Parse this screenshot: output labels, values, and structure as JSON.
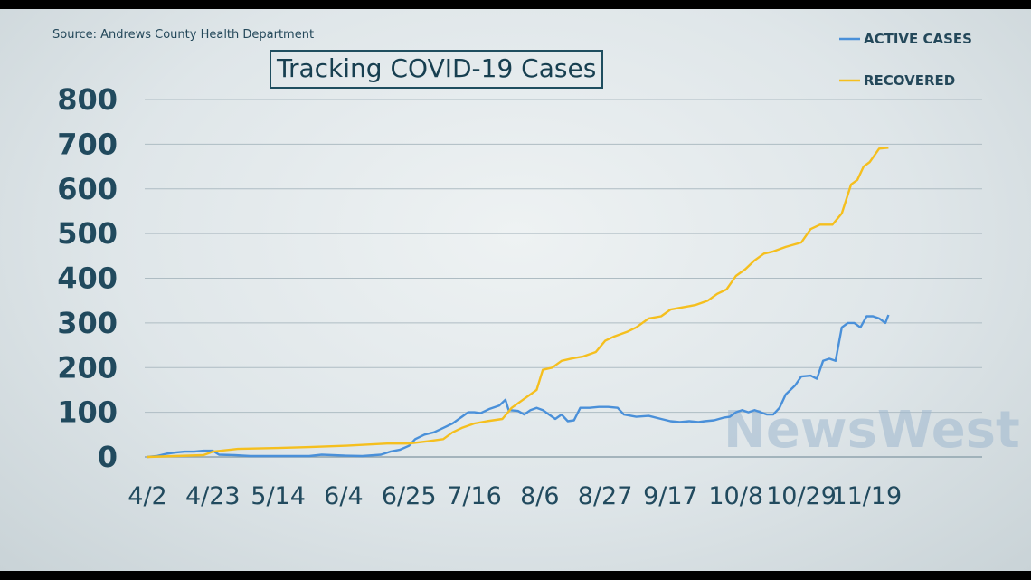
{
  "source_note": "Source: Andrews County Health Department",
  "watermark": "NewsWest",
  "chart_data": {
    "type": "line",
    "title": "Tracking COVID-19 Cases",
    "xlabel": "",
    "ylabel": "",
    "ylim": [
      0,
      800
    ],
    "yticks": [
      "0",
      "100",
      "200",
      "300",
      "400",
      "500",
      "600",
      "700",
      "800"
    ],
    "xticks": [
      "4/2",
      "4/23",
      "5/14",
      "6/4",
      "6/25",
      "7/16",
      "8/6",
      "8/27",
      "9/17",
      "10/8",
      "10/29",
      "11/19"
    ],
    "grid": true,
    "legend_position": "top-right",
    "series": [
      {
        "name": "ACTIVE CASES",
        "color": "#4a90d9",
        "points": [
          [
            "4/2",
            0
          ],
          [
            "4/5",
            2
          ],
          [
            "4/8",
            7
          ],
          [
            "4/11",
            10
          ],
          [
            "4/14",
            12
          ],
          [
            "4/17",
            12
          ],
          [
            "4/20",
            14
          ],
          [
            "4/23",
            14
          ],
          [
            "4/25",
            5
          ],
          [
            "4/30",
            4
          ],
          [
            "5/5",
            2
          ],
          [
            "5/14",
            2
          ],
          [
            "5/24",
            2
          ],
          [
            "5/28",
            5
          ],
          [
            "6/4",
            3
          ],
          [
            "6/10",
            2
          ],
          [
            "6/16",
            5
          ],
          [
            "6/19",
            12
          ],
          [
            "6/22",
            16
          ],
          [
            "6/25",
            25
          ],
          [
            "6/27",
            40
          ],
          [
            "6/30",
            50
          ],
          [
            "7/3",
            55
          ],
          [
            "7/6",
            65
          ],
          [
            "7/9",
            75
          ],
          [
            "7/12",
            90
          ],
          [
            "7/14",
            100
          ],
          [
            "7/16",
            100
          ],
          [
            "7/18",
            98
          ],
          [
            "7/21",
            108
          ],
          [
            "7/24",
            115
          ],
          [
            "7/26",
            128
          ],
          [
            "7/27",
            105
          ],
          [
            "7/30",
            103
          ],
          [
            "8/1",
            95
          ],
          [
            "8/3",
            105
          ],
          [
            "8/5",
            110
          ],
          [
            "8/7",
            105
          ],
          [
            "8/9",
            95
          ],
          [
            "8/11",
            85
          ],
          [
            "8/13",
            95
          ],
          [
            "8/15",
            80
          ],
          [
            "8/17",
            82
          ],
          [
            "8/19",
            110
          ],
          [
            "8/22",
            110
          ],
          [
            "8/25",
            112
          ],
          [
            "8/28",
            112
          ],
          [
            "8/31",
            110
          ],
          [
            "9/2",
            95
          ],
          [
            "9/6",
            90
          ],
          [
            "9/10",
            92
          ],
          [
            "9/14",
            85
          ],
          [
            "9/17",
            80
          ],
          [
            "9/20",
            78
          ],
          [
            "9/23",
            80
          ],
          [
            "9/26",
            78
          ],
          [
            "9/28",
            80
          ],
          [
            "10/1",
            82
          ],
          [
            "10/4",
            88
          ],
          [
            "10/6",
            90
          ],
          [
            "10/8",
            100
          ],
          [
            "10/10",
            105
          ],
          [
            "10/12",
            100
          ],
          [
            "10/14",
            105
          ],
          [
            "10/16",
            100
          ],
          [
            "10/18",
            95
          ],
          [
            "10/20",
            95
          ],
          [
            "10/22",
            110
          ],
          [
            "10/24",
            140
          ],
          [
            "10/27",
            160
          ],
          [
            "10/29",
            180
          ],
          [
            "11/1",
            182
          ],
          [
            "11/3",
            175
          ],
          [
            "11/5",
            215
          ],
          [
            "11/7",
            220
          ],
          [
            "11/9",
            215
          ],
          [
            "11/11",
            290
          ],
          [
            "11/13",
            300
          ],
          [
            "11/15",
            300
          ],
          [
            "11/17",
            290
          ],
          [
            "11/19",
            315
          ],
          [
            "11/21",
            315
          ],
          [
            "11/23",
            310
          ],
          [
            "11/25",
            300
          ],
          [
            "11/26",
            318
          ]
        ]
      },
      {
        "name": "RECOVERED",
        "color": "#f5bf1e",
        "points": [
          [
            "4/2",
            0
          ],
          [
            "4/20",
            4
          ],
          [
            "4/23",
            12
          ],
          [
            "5/1",
            18
          ],
          [
            "5/14",
            20
          ],
          [
            "5/24",
            22
          ],
          [
            "6/4",
            25
          ],
          [
            "6/18",
            30
          ],
          [
            "6/25",
            30
          ],
          [
            "7/1",
            35
          ],
          [
            "7/6",
            40
          ],
          [
            "7/9",
            55
          ],
          [
            "7/12",
            65
          ],
          [
            "7/16",
            75
          ],
          [
            "7/20",
            80
          ],
          [
            "7/25",
            85
          ],
          [
            "7/28",
            110
          ],
          [
            "7/31",
            125
          ],
          [
            "8/3",
            140
          ],
          [
            "8/5",
            150
          ],
          [
            "8/7",
            195
          ],
          [
            "8/10",
            200
          ],
          [
            "8/13",
            215
          ],
          [
            "8/16",
            220
          ],
          [
            "8/20",
            225
          ],
          [
            "8/24",
            235
          ],
          [
            "8/27",
            260
          ],
          [
            "8/30",
            270
          ],
          [
            "9/3",
            280
          ],
          [
            "9/6",
            290
          ],
          [
            "9/10",
            310
          ],
          [
            "9/14",
            315
          ],
          [
            "9/17",
            330
          ],
          [
            "9/21",
            335
          ],
          [
            "9/25",
            340
          ],
          [
            "9/29",
            350
          ],
          [
            "10/2",
            365
          ],
          [
            "10/5",
            375
          ],
          [
            "10/8",
            405
          ],
          [
            "10/11",
            420
          ],
          [
            "10/14",
            440
          ],
          [
            "10/17",
            455
          ],
          [
            "10/20",
            460
          ],
          [
            "10/24",
            470
          ],
          [
            "10/29",
            480
          ],
          [
            "11/1",
            510
          ],
          [
            "11/4",
            520
          ],
          [
            "11/8",
            520
          ],
          [
            "11/11",
            545
          ],
          [
            "11/14",
            610
          ],
          [
            "11/16",
            620
          ],
          [
            "11/18",
            650
          ],
          [
            "11/20",
            660
          ],
          [
            "11/23",
            690
          ],
          [
            "11/26",
            692
          ]
        ]
      }
    ]
  }
}
